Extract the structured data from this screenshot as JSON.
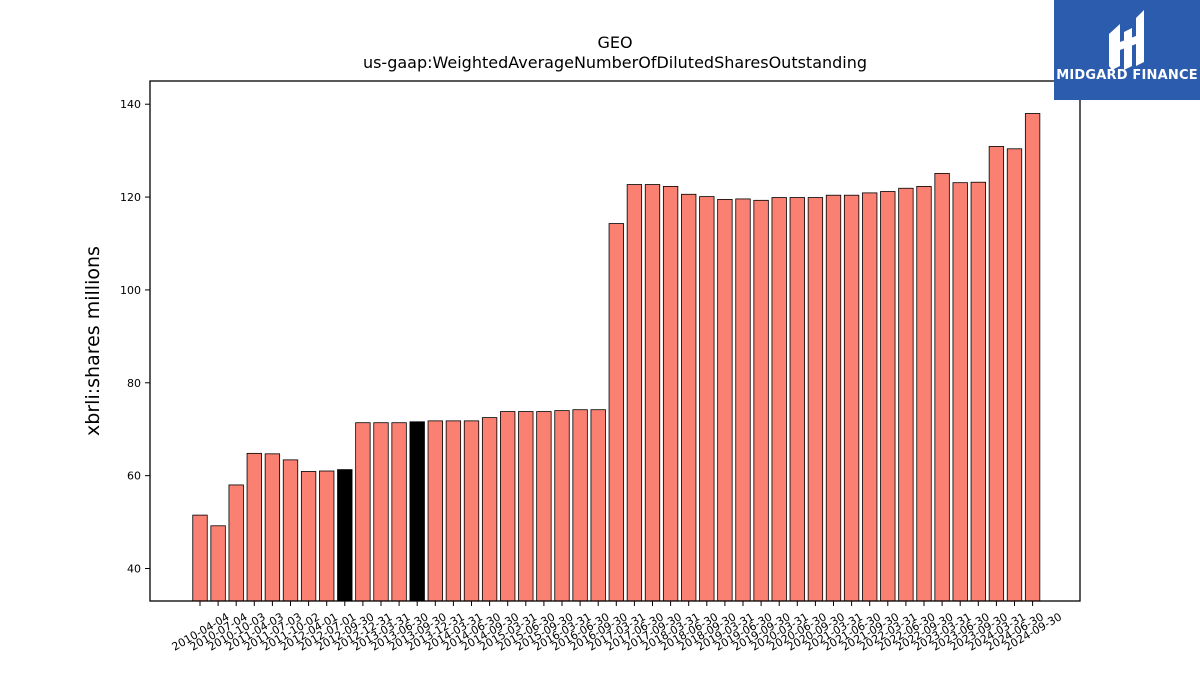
{
  "logo": {
    "text": "MIDGARD FINANCE",
    "background_color": "#2b5cad"
  },
  "chart_data": {
    "type": "bar",
    "title": "GEO",
    "subtitle": "us-gaap:WeightedAverageNumberOfDilutedSharesOutstanding",
    "xlabel": "",
    "ylabel": "xbrli:shares millions",
    "ylim": [
      33,
      145
    ],
    "yticks": [
      40,
      60,
      80,
      100,
      120,
      140
    ],
    "grid": false,
    "bar_color": "#fa8072",
    "highlight_color": "#000000",
    "categories": [
      "2010-04-04",
      "2010-07-04",
      "2010-10-03",
      "2011-04-03",
      "2011-07-03",
      "2011-10-02",
      "2012-04-01",
      "2012-07-01",
      "2012-09-30",
      "2012-12-31",
      "2013-03-31",
      "2013-06-30",
      "2013-09-30",
      "2013-12-31",
      "2014-03-31",
      "2014-06-30",
      "2014-09-30",
      "2015-03-31",
      "2015-06-30",
      "2015-09-30",
      "2016-03-31",
      "2016-06-30",
      "2016-09-30",
      "2017-03-31",
      "2017-06-30",
      "2017-09-30",
      "2018-03-31",
      "2018-06-30",
      "2018-09-30",
      "2019-03-31",
      "2019-06-30",
      "2019-09-30",
      "2020-03-31",
      "2020-06-30",
      "2020-09-30",
      "2021-03-31",
      "2021-06-30",
      "2021-09-30",
      "2022-03-31",
      "2022-06-30",
      "2022-09-30",
      "2023-03-31",
      "2023-06-30",
      "2023-09-30",
      "2024-03-31",
      "2024-06-30",
      "2024-09-30"
    ],
    "values": [
      51.5,
      49.2,
      58.0,
      64.8,
      64.7,
      63.4,
      60.9,
      61.0,
      61.3,
      71.4,
      71.4,
      71.4,
      71.6,
      71.8,
      71.8,
      71.8,
      72.5,
      73.8,
      73.8,
      73.8,
      74.0,
      74.2,
      74.2,
      114.3,
      122.7,
      122.7,
      122.3,
      120.6,
      120.1,
      119.5,
      119.6,
      119.3,
      119.9,
      119.9,
      119.9,
      120.4,
      120.4,
      120.9,
      121.2,
      121.9,
      122.3,
      125.1,
      123.1,
      123.2,
      130.9,
      130.4,
      138.0
    ],
    "highlighted_categories": [
      "2012-09-30",
      "2013-09-30"
    ]
  }
}
